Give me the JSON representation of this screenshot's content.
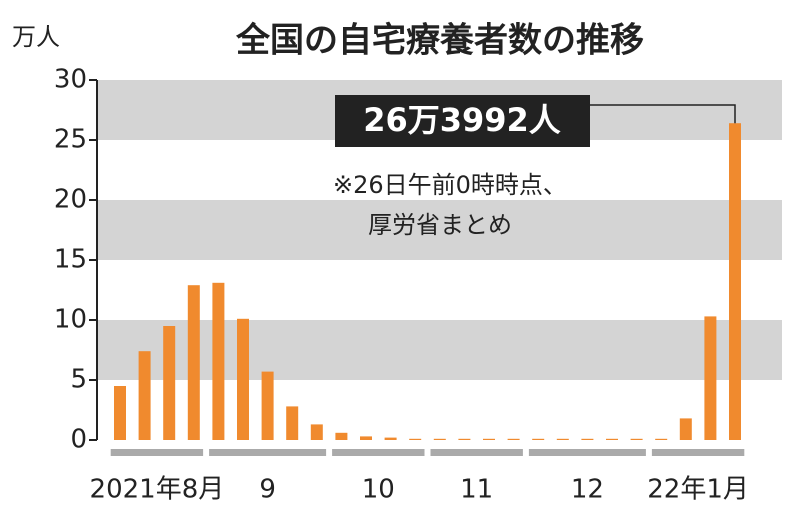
{
  "chart_data": {
    "type": "bar",
    "title": "全国の自宅療養者数の推移",
    "y_unit": "万人",
    "categories": [
      "2021年8月",
      null,
      null,
      null,
      "9",
      null,
      null,
      null,
      null,
      "10",
      null,
      null,
      null,
      "11",
      null,
      null,
      null,
      "12",
      null,
      null,
      null,
      null,
      "22年1月",
      null,
      null,
      null
    ],
    "values": [
      4.5,
      7.4,
      9.5,
      12.9,
      13.1,
      10.1,
      5.7,
      2.8,
      1.3,
      0.6,
      0.3,
      0.2,
      0.1,
      0.1,
      0.1,
      0.1,
      0.1,
      0.1,
      0.1,
      0.1,
      0.1,
      0.1,
      0.1,
      1.8,
      10.3,
      26.3992
    ],
    "color": "#f08a2e",
    "ylim": [
      0,
      30
    ],
    "yticks": [
      0,
      5,
      10,
      15,
      20,
      25,
      30
    ],
    "grid": true,
    "annotation": "26万3992人",
    "note": [
      "※26日午前0時時点、",
      "厚労省まとめ"
    ]
  }
}
